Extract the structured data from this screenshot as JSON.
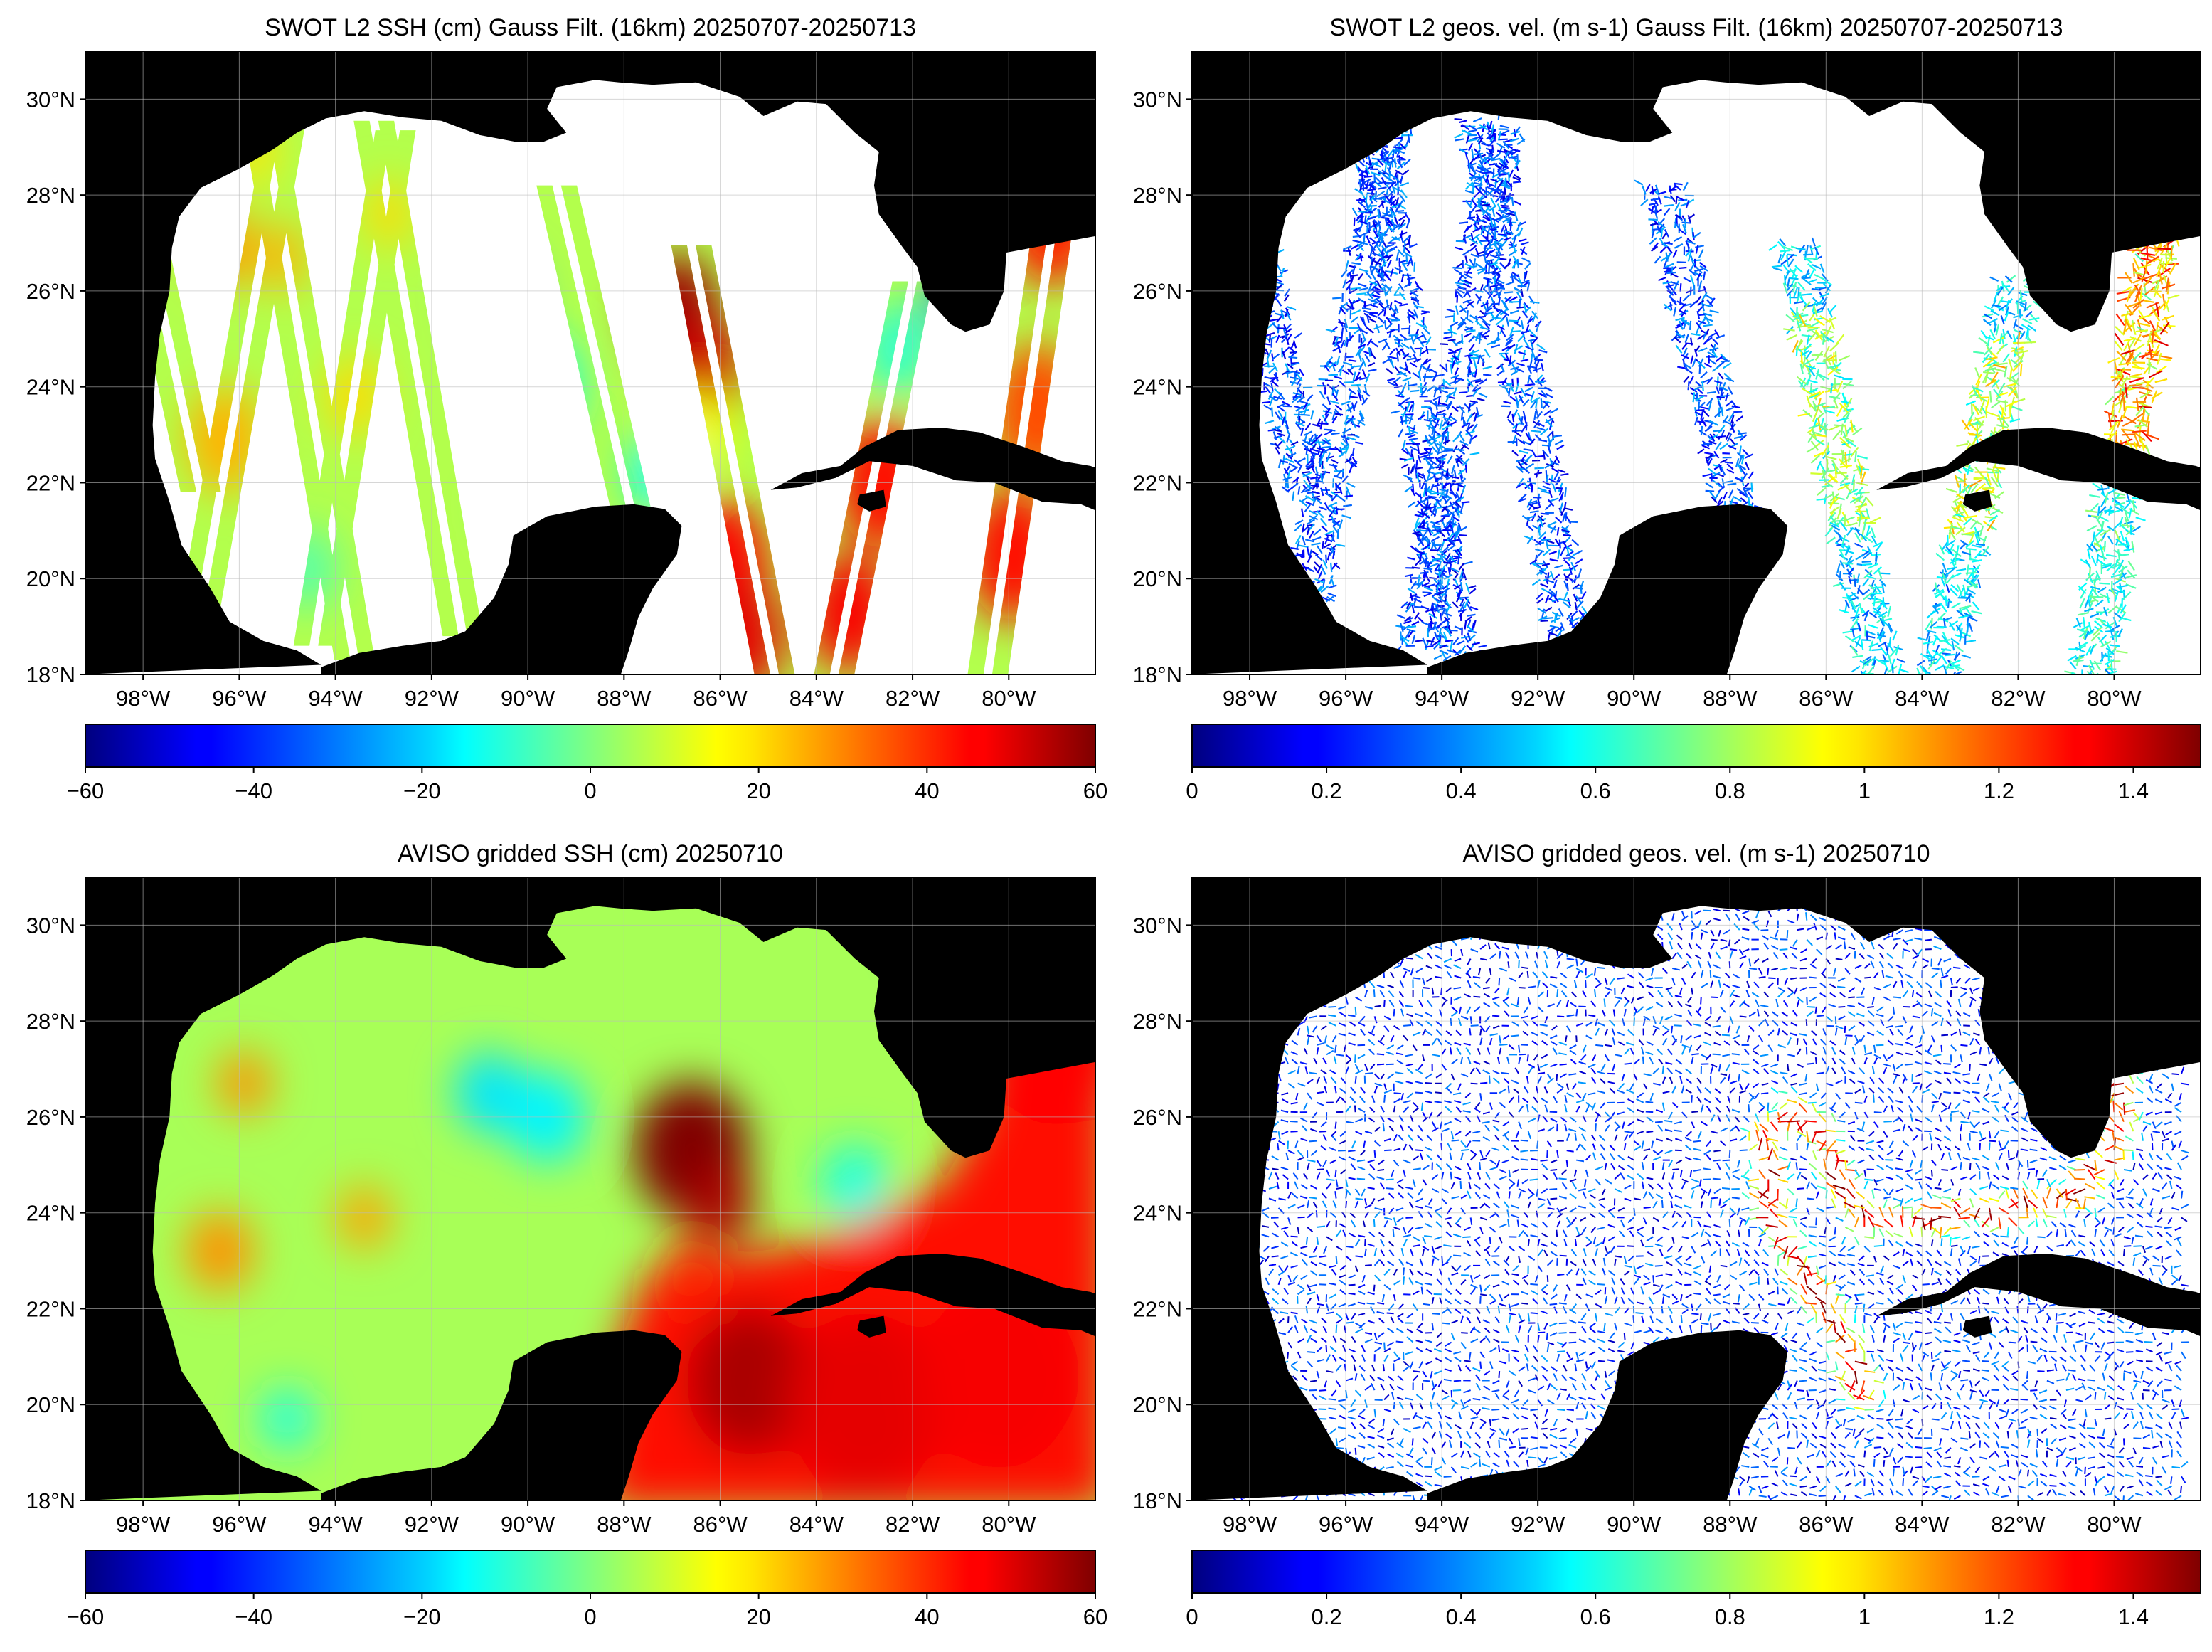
{
  "figure": {
    "panels": [
      {
        "id": "swot-ssh",
        "title": "SWOT L2 SSH (cm) Gauss Filt. (16km) 20250707-20250713",
        "type": "swath-ssh",
        "colorbar": {
          "min": -60,
          "max": 60,
          "ticks": [
            "−60",
            "−40",
            "−20",
            "0",
            "20",
            "40",
            "60"
          ]
        }
      },
      {
        "id": "swot-vel",
        "title": "SWOT L2 geos. vel. (m s-1) Gauss Filt. (16km) 20250707-20250713",
        "type": "swath-vel",
        "colorbar": {
          "min": 0,
          "max": 1.5,
          "ticks": [
            "0",
            "0.2",
            "0.4",
            "0.6",
            "0.8",
            "1",
            "1.2",
            "1.4"
          ]
        }
      },
      {
        "id": "aviso-ssh",
        "title": "AVISO gridded SSH (cm) 20250710",
        "type": "grid-ssh",
        "colorbar": {
          "min": -60,
          "max": 60,
          "ticks": [
            "−60",
            "−40",
            "−20",
            "0",
            "20",
            "40",
            "60"
          ]
        }
      },
      {
        "id": "aviso-vel",
        "title": "AVISO gridded geos. vel. (m s-1)  20250710",
        "type": "grid-vel",
        "colorbar": {
          "min": 0,
          "max": 1.5,
          "ticks": [
            "0",
            "0.2",
            "0.4",
            "0.6",
            "0.8",
            "1",
            "1.2",
            "1.4"
          ]
        }
      }
    ],
    "map_extent": {
      "lon_min": -99.2,
      "lon_max": -78.2,
      "lat_min": 18,
      "lat_max": 31
    },
    "lat_ticks": [
      {
        "value": 18,
        "label": "18°N"
      },
      {
        "value": 20,
        "label": "20°N"
      },
      {
        "value": 22,
        "label": "22°N"
      },
      {
        "value": 24,
        "label": "24°N"
      },
      {
        "value": 26,
        "label": "26°N"
      },
      {
        "value": 28,
        "label": "28°N"
      },
      {
        "value": 30,
        "label": "30°N"
      }
    ],
    "lon_ticks": [
      {
        "value": -98,
        "label": "98°W"
      },
      {
        "value": -96,
        "label": "96°W"
      },
      {
        "value": -94,
        "label": "94°W"
      },
      {
        "value": -92,
        "label": "92°W"
      },
      {
        "value": -90,
        "label": "90°W"
      },
      {
        "value": -88,
        "label": "88°W"
      },
      {
        "value": -86,
        "label": "86°W"
      },
      {
        "value": -84,
        "label": "84°W"
      },
      {
        "value": -82,
        "label": "82°W"
      },
      {
        "value": -80,
        "label": "80°W"
      }
    ],
    "colormap": "jet",
    "land_color": "#000000",
    "no_data_color": "#ffffff",
    "grid_color": "#bbbbbb"
  }
}
